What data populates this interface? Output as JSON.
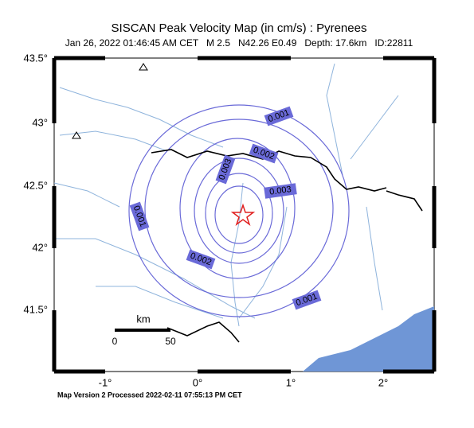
{
  "header": {
    "title": "SISCAN Peak Velocity Map (in cm/s) : Pyrenees",
    "subtitle": "Jan 26, 2022 01:46:45 AM CET   M 2.5   N42.26 E0.49   Depth: 17.6km   ID:22811"
  },
  "map": {
    "lat_labels": [
      "43.5°",
      "43°",
      "42.5°",
      "42°",
      "41.5°"
    ],
    "lon_labels": [
      "-1°",
      "0°",
      "1°",
      "2°"
    ],
    "contour_labels": [
      "0.001",
      "0.001",
      "0.001",
      "0.002",
      "0.002",
      "0.003",
      "0.003"
    ],
    "scale": {
      "unit": "km",
      "labels": [
        "0",
        "50"
      ]
    }
  },
  "footer": "Map Version 2 Processed 2022-02-11 07:55:13 PM CET"
}
